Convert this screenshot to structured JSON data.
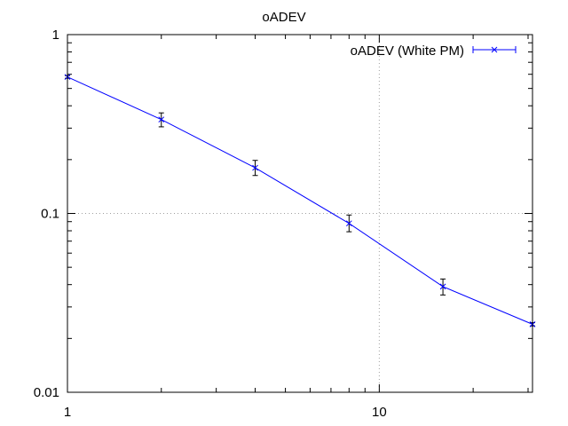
{
  "chart_data": {
    "type": "line",
    "title": "oADEV",
    "xlabel": "",
    "ylabel": "",
    "x_scale": "log",
    "y_scale": "log",
    "xlim": [
      1,
      31
    ],
    "ylim": [
      0.01,
      1
    ],
    "x_ticks": [
      {
        "value": 1,
        "label": "1"
      },
      {
        "value": 10,
        "label": "10"
      }
    ],
    "y_ticks": [
      {
        "value": 1,
        "label": "1"
      },
      {
        "value": 0.1,
        "label": "0.1"
      },
      {
        "value": 0.01,
        "label": "0.01"
      }
    ],
    "grid": true,
    "legend_position": "top-right",
    "series": [
      {
        "name": "oADEV (White PM)",
        "color": "#0000ff",
        "marker": "x",
        "errorbars": true,
        "points": [
          {
            "x": 1,
            "y": 0.58,
            "ylow": 0.57,
            "yhigh": 0.59
          },
          {
            "x": 2,
            "y": 0.335,
            "ylow": 0.305,
            "yhigh": 0.365
          },
          {
            "x": 4,
            "y": 0.18,
            "ylow": 0.163,
            "yhigh": 0.198
          },
          {
            "x": 8,
            "y": 0.088,
            "ylow": 0.079,
            "yhigh": 0.098
          },
          {
            "x": 16,
            "y": 0.039,
            "ylow": 0.035,
            "yhigh": 0.043
          },
          {
            "x": 31,
            "y": 0.024,
            "ylow": 0.0235,
            "yhigh": 0.0245
          }
        ]
      }
    ]
  }
}
